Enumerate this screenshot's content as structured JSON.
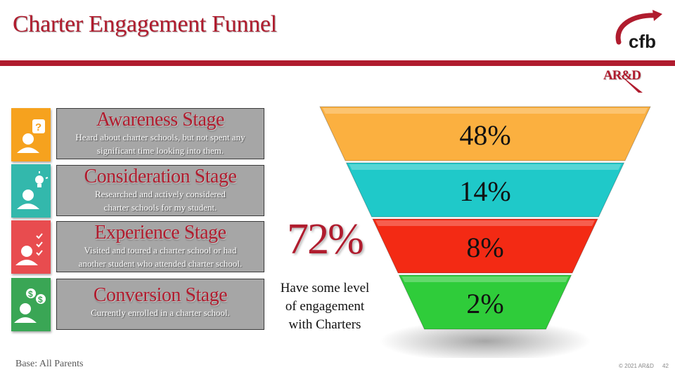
{
  "header": {
    "title": "Charter Engagement Funnel",
    "logo_text": "cfb",
    "dept_label": "AR&D",
    "accent": "#b01c2e"
  },
  "stages": [
    {
      "name": "Awareness Stage",
      "desc_line1": "Heard about charter schools, but not spent any",
      "desc_line2": "significant time looking into them.",
      "icon": "question-person-icon",
      "color": "#f6a21e"
    },
    {
      "name": "Consideration Stage",
      "desc_line1": "Researched and actively considered",
      "desc_line2": "charter schools for my student.",
      "icon": "lightbulb-person-icon",
      "color": "#33b8ac"
    },
    {
      "name": "Experience Stage",
      "desc_line1": "Visited and toured a charter school or had",
      "desc_line2": "another student who attended charter school.",
      "icon": "checklist-person-icon",
      "color": "#e84c4f"
    },
    {
      "name": "Conversion Stage",
      "desc_line1": "Currently enrolled in a charter school.",
      "desc_line2": "",
      "icon": "money-person-icon",
      "color": "#3aa655"
    }
  ],
  "summary": {
    "value": "72%",
    "caption_line1": "Have some level",
    "caption_line2": "of engagement",
    "caption_line3": "with Charters"
  },
  "chart_data": {
    "type": "funnel",
    "title": "",
    "categories": [
      "Awareness Stage",
      "Consideration Stage",
      "Experience Stage",
      "Conversion Stage"
    ],
    "values": [
      48,
      14,
      8,
      2
    ],
    "labels": [
      "48%",
      "14%",
      "8%",
      "2%"
    ],
    "colors": [
      "#fbb040",
      "#1fc9c9",
      "#f32a14",
      "#2fcc3a"
    ]
  },
  "footer": {
    "base": "Base:  All Parents",
    "copyright": "© 2021 AR&D",
    "page": "42"
  }
}
